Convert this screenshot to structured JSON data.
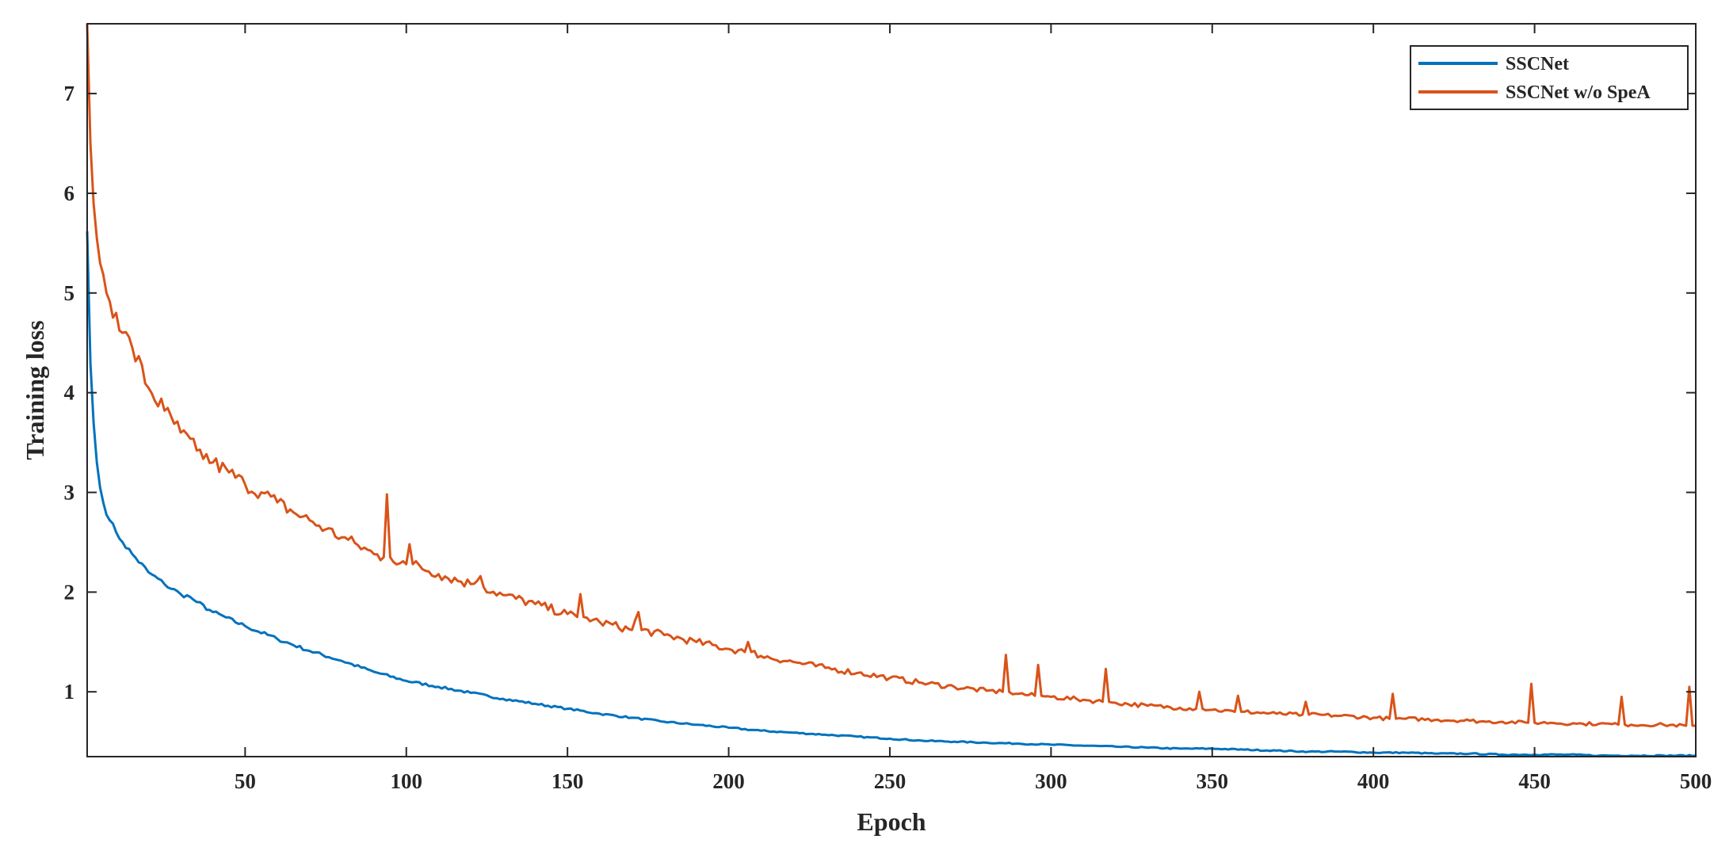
{
  "chart_data": {
    "type": "line",
    "xlabel": "Epoch",
    "ylabel": "Training loss",
    "xlim": [
      1,
      500
    ],
    "ylim": [
      0.35,
      7.7
    ],
    "xticks": [
      50,
      100,
      150,
      200,
      250,
      300,
      350,
      400,
      450,
      500
    ],
    "yticks": [
      1,
      2,
      3,
      4,
      5,
      6,
      7
    ],
    "grid": false,
    "legend_position": "top-right",
    "series": [
      {
        "name": "SSCNet",
        "color": "#0072BD",
        "x": [
          1,
          2,
          3,
          4,
          5,
          6,
          8,
          10,
          12,
          15,
          20,
          25,
          30,
          33,
          35,
          40,
          50,
          60,
          70,
          80,
          90,
          100,
          110,
          120,
          130,
          140,
          150,
          160,
          170,
          180,
          190,
          200,
          210,
          220,
          230,
          240,
          250,
          260,
          270,
          280,
          290,
          300,
          310,
          320,
          330,
          340,
          350,
          360,
          370,
          380,
          390,
          400,
          410,
          420,
          430,
          440,
          450,
          460,
          470,
          480,
          490,
          500
        ],
        "y": [
          5.62,
          4.3,
          3.7,
          3.3,
          3.05,
          2.9,
          2.72,
          2.6,
          2.5,
          2.38,
          2.2,
          2.08,
          1.98,
          1.95,
          1.9,
          1.8,
          1.66,
          1.53,
          1.41,
          1.31,
          1.2,
          1.11,
          1.05,
          0.99,
          0.93,
          0.88,
          0.83,
          0.78,
          0.74,
          0.7,
          0.67,
          0.64,
          0.61,
          0.59,
          0.57,
          0.55,
          0.53,
          0.51,
          0.5,
          0.49,
          0.48,
          0.47,
          0.46,
          0.45,
          0.44,
          0.43,
          0.43,
          0.42,
          0.41,
          0.4,
          0.4,
          0.39,
          0.39,
          0.38,
          0.38,
          0.37,
          0.37,
          0.37,
          0.36,
          0.36,
          0.36,
          0.36
        ]
      },
      {
        "name": "SSCNet w/o SpeA",
        "color": "#D95319",
        "x": [
          1,
          2,
          3,
          4,
          5,
          7,
          10,
          12,
          15,
          20,
          25,
          30,
          35,
          40,
          45,
          50,
          55,
          60,
          65,
          70,
          75,
          80,
          85,
          90,
          93,
          94,
          95,
          100,
          101,
          102,
          110,
          120,
          123,
          124,
          130,
          140,
          150,
          153,
          154,
          155,
          160,
          170,
          172,
          173,
          180,
          190,
          200,
          205,
          206,
          207,
          210,
          220,
          230,
          240,
          250,
          260,
          270,
          280,
          285,
          286,
          287,
          290,
          295,
          296,
          297,
          300,
          310,
          316,
          317,
          318,
          320,
          330,
          340,
          345,
          346,
          347,
          350,
          357,
          358,
          359,
          360,
          370,
          378,
          379,
          380,
          390,
          400,
          405,
          406,
          407,
          410,
          420,
          430,
          435,
          440,
          448,
          449,
          450,
          455,
          463,
          465,
          470,
          476,
          477,
          478,
          480,
          490,
          497,
          498,
          499,
          500
        ],
        "y": [
          7.7,
          6.5,
          5.9,
          5.55,
          5.3,
          5.0,
          4.8,
          4.6,
          4.45,
          4.05,
          3.82,
          3.6,
          3.42,
          3.3,
          3.2,
          3.08,
          3.0,
          2.9,
          2.8,
          2.72,
          2.63,
          2.55,
          2.47,
          2.38,
          2.35,
          2.98,
          2.35,
          2.28,
          2.48,
          2.28,
          2.18,
          2.08,
          2.16,
          2.05,
          1.97,
          1.88,
          1.78,
          1.75,
          1.98,
          1.75,
          1.7,
          1.62,
          1.8,
          1.62,
          1.57,
          1.5,
          1.43,
          1.4,
          1.5,
          1.4,
          1.36,
          1.3,
          1.24,
          1.19,
          1.14,
          1.09,
          1.05,
          1.01,
          1.0,
          1.37,
          1.0,
          0.98,
          0.96,
          1.27,
          0.96,
          0.95,
          0.92,
          0.9,
          1.23,
          0.9,
          0.89,
          0.86,
          0.84,
          0.83,
          1.0,
          0.83,
          0.82,
          0.8,
          0.96,
          0.8,
          0.8,
          0.78,
          0.77,
          0.9,
          0.77,
          0.76,
          0.74,
          0.73,
          0.98,
          0.73,
          0.73,
          0.72,
          0.71,
          0.7,
          0.7,
          0.69,
          1.08,
          0.69,
          0.69,
          0.68,
          0.68,
          0.68,
          0.67,
          0.95,
          0.67,
          0.67,
          0.67,
          0.66,
          1.05,
          0.66,
          0.66
        ]
      }
    ]
  }
}
